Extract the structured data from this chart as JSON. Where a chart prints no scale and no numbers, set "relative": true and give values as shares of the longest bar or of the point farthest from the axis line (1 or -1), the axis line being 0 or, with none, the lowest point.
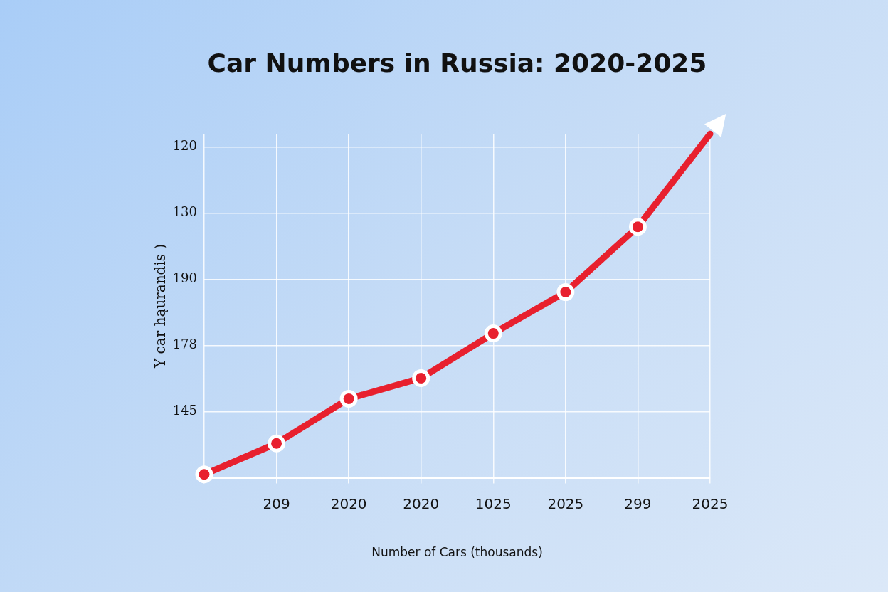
{
  "chart_data": {
    "type": "line",
    "title": "Car Numbers in Russia: 2020-2025",
    "xlabel": "Number of Cars (thousands)",
    "ylabel": "Y car hąurandis )",
    "categories": [
      null,
      "209",
      "2020",
      "2020",
      "1025",
      "2025",
      "299",
      "2025"
    ],
    "series": [
      {
        "color": "#e8202e",
        "values": [
          0.01,
          0.1,
          0.23,
          0.29,
          0.42,
          0.54,
          0.73,
          1
        ]
      }
    ],
    "relative": true,
    "annotations": [
      "120",
      "130",
      "190",
      "178",
      "145"
    ],
    "grid": true,
    "marker": "circle",
    "line_style": "solid"
  }
}
